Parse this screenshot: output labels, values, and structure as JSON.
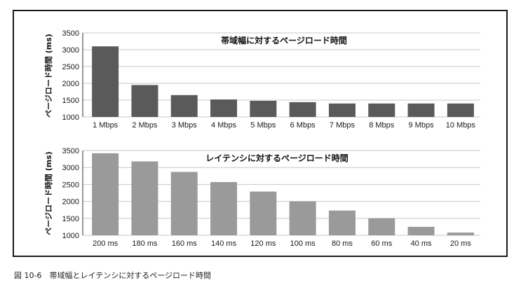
{
  "caption": "図 10-6　帯域幅とレイテンシに対するページロード時間",
  "chart_data": [
    {
      "type": "bar",
      "title": "帯域幅に対するページロード時間",
      "ylabel": "ページロード時間 (ms)",
      "xlabel": "",
      "categories": [
        "1 Mbps",
        "2 Mbps",
        "3 Mbps",
        "4 Mbps",
        "5 Mbps",
        "6 Mbps",
        "7 Mbps",
        "8 Mbps",
        "9 Mbps",
        "10 Mbps"
      ],
      "values": [
        3100,
        1950,
        1650,
        1520,
        1480,
        1440,
        1400,
        1400,
        1400,
        1400
      ],
      "ylim": [
        1000,
        3500
      ],
      "yticks": [
        1000,
        1500,
        2000,
        2500,
        3000,
        3500
      ],
      "grid": true,
      "bar_color": "#5a5a5a"
    },
    {
      "type": "bar",
      "title": "レイテンシに対するページロード時間",
      "ylabel": "ページロード時間 (ms)",
      "xlabel": "",
      "categories": [
        "200 ms",
        "180 ms",
        "160 ms",
        "140 ms",
        "120 ms",
        "100 ms",
        "80 ms",
        "60 ms",
        "40 ms",
        "20 ms"
      ],
      "values": [
        3420,
        3180,
        2870,
        2570,
        2290,
        2000,
        1730,
        1500,
        1250,
        1080
      ],
      "ylim": [
        1000,
        3500
      ],
      "yticks": [
        1000,
        1500,
        2000,
        2500,
        3000,
        3500
      ],
      "grid": true,
      "bar_color": "#9a9a9a"
    }
  ]
}
